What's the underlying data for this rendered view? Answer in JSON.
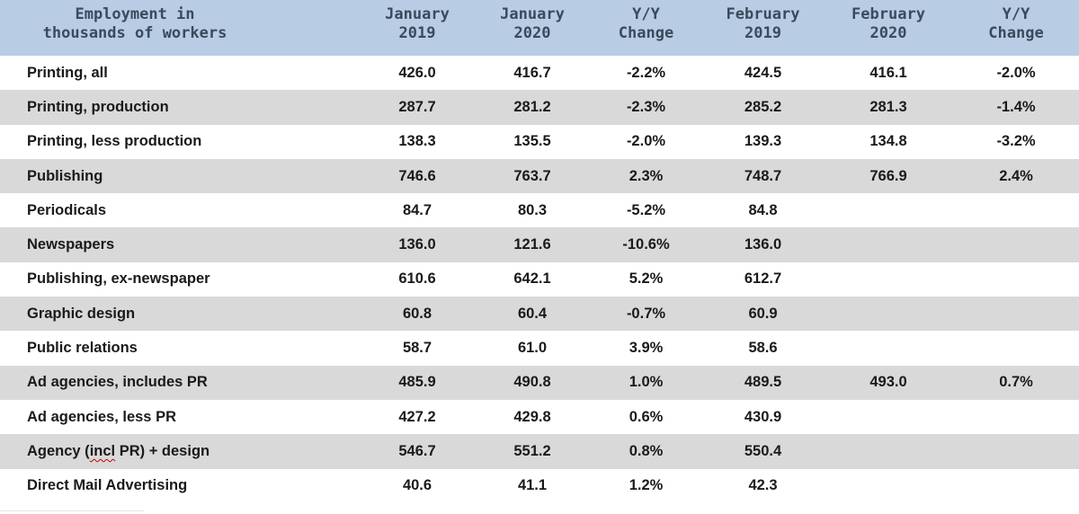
{
  "table": {
    "headers": [
      "Employment in\nthousands of workers",
      "January\n2019",
      "January\n2020",
      "Y/Y\nChange",
      "February\n2019",
      "February\n2020",
      "Y/Y\nChange"
    ],
    "rows": [
      {
        "label": "Printing, all",
        "jan2019": "426.0",
        "jan2020": "416.7",
        "jan_yy": "-2.2%",
        "feb2019": "424.5",
        "feb2020": "416.1",
        "feb_yy": "-2.0%"
      },
      {
        "label": "Printing, production",
        "jan2019": "287.7",
        "jan2020": "281.2",
        "jan_yy": "-2.3%",
        "feb2019": "285.2",
        "feb2020": "281.3",
        "feb_yy": "-1.4%"
      },
      {
        "label": "Printing, less production",
        "jan2019": "138.3",
        "jan2020": "135.5",
        "jan_yy": "-2.0%",
        "feb2019": "139.3",
        "feb2020": "134.8",
        "feb_yy": "-3.2%"
      },
      {
        "label": "Publishing",
        "jan2019": "746.6",
        "jan2020": "763.7",
        "jan_yy": "2.3%",
        "feb2019": "748.7",
        "feb2020": "766.9",
        "feb_yy": "2.4%"
      },
      {
        "label": "Periodicals",
        "jan2019": "84.7",
        "jan2020": "80.3",
        "jan_yy": "-5.2%",
        "feb2019": "84.8",
        "feb2020": "",
        "feb_yy": ""
      },
      {
        "label": "Newspapers",
        "jan2019": "136.0",
        "jan2020": "121.6",
        "jan_yy": "-10.6%",
        "feb2019": "136.0",
        "feb2020": "",
        "feb_yy": ""
      },
      {
        "label": "Publishing, ex-newspaper",
        "jan2019": "610.6",
        "jan2020": "642.1",
        "jan_yy": "5.2%",
        "feb2019": "612.7",
        "feb2020": "",
        "feb_yy": ""
      },
      {
        "label": "Graphic design",
        "jan2019": "60.8",
        "jan2020": "60.4",
        "jan_yy": "-0.7%",
        "feb2019": "60.9",
        "feb2020": "",
        "feb_yy": ""
      },
      {
        "label": "Public relations",
        "jan2019": "58.7",
        "jan2020": "61.0",
        "jan_yy": "3.9%",
        "feb2019": "58.6",
        "feb2020": "",
        "feb_yy": ""
      },
      {
        "label": "Ad agencies, includes PR",
        "jan2019": "485.9",
        "jan2020": "490.8",
        "jan_yy": "1.0%",
        "feb2019": "489.5",
        "feb2020": "493.0",
        "feb_yy": "0.7%"
      },
      {
        "label": "Ad agencies, less PR",
        "jan2019": "427.2",
        "jan2020": "429.8",
        "jan_yy": "0.6%",
        "feb2019": "430.9",
        "feb2020": "",
        "feb_yy": ""
      },
      {
        "label": "Agency (incl PR) + design",
        "label_pre": "Agency (",
        "label_squiggle": "incl",
        "label_post": " PR) + design",
        "jan2019": "546.7",
        "jan2020": "551.2",
        "jan_yy": "0.8%",
        "feb2019": "550.4",
        "feb2020": "",
        "feb_yy": ""
      },
      {
        "label": "Direct Mail Advertising",
        "jan2019": "40.6",
        "jan2020": "41.1",
        "jan_yy": "1.2%",
        "feb2019": "42.3",
        "feb2020": "",
        "feb_yy": ""
      }
    ]
  },
  "colors": {
    "header_bg": "#b8cce4",
    "header_text": "#3a4a5c",
    "band_bg": "#d9d9d9",
    "spellcheck_underline": "#d00000"
  }
}
